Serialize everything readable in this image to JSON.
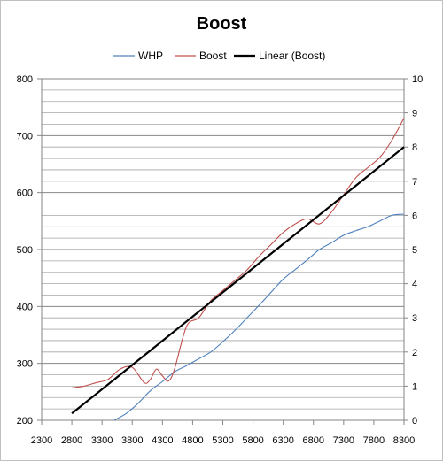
{
  "chart_data": {
    "type": "line",
    "title": "Boost",
    "legend_position": "top",
    "grid": true,
    "x": {
      "min": 2300,
      "max": 8300,
      "ticks": [
        2300,
        2800,
        3300,
        3800,
        4300,
        4800,
        5300,
        5800,
        6300,
        6800,
        7300,
        7800,
        8300
      ],
      "tick_labels": [
        "2300",
        "2800",
        "3300",
        "3800",
        "4300",
        "4800",
        "5300",
        "5800",
        "6300",
        "6800",
        "7300",
        "7800",
        "8300"
      ]
    },
    "y_left": {
      "min": 200,
      "max": 800,
      "ticks": [
        200,
        300,
        400,
        500,
        600,
        700,
        800
      ],
      "tick_labels": [
        "200",
        "300",
        "400",
        "500",
        "600",
        "700",
        "800"
      ]
    },
    "y_right": {
      "min": 0,
      "max": 10,
      "ticks": [
        0,
        1,
        2,
        3,
        4,
        5,
        6,
        7,
        8,
        9,
        10
      ],
      "tick_labels": [
        "0",
        "1",
        "2",
        "3",
        "4",
        "5",
        "6",
        "7",
        "8",
        "9",
        "10"
      ]
    },
    "series": [
      {
        "name": "WHP",
        "axis": "left",
        "color": "#4F81BD",
        "x": [
          3500,
          3700,
          3900,
          4100,
          4300,
          4500,
          4700,
          4900,
          5100,
          5300,
          5500,
          5700,
          5900,
          6100,
          6300,
          6500,
          6700,
          6900,
          7100,
          7300,
          7500,
          7700,
          7900,
          8100,
          8300
        ],
        "y": [
          200,
          212,
          230,
          252,
          268,
          285,
          296,
          308,
          320,
          338,
          358,
          380,
          402,
          425,
          448,
          465,
          482,
          500,
          512,
          525,
          533,
          540,
          550,
          560,
          562
        ]
      },
      {
        "name": "Boost",
        "axis": "right",
        "color": "#C0504D",
        "x": [
          2800,
          3000,
          3200,
          3400,
          3600,
          3800,
          4000,
          4100,
          4200,
          4300,
          4400,
          4500,
          4700,
          4900,
          5100,
          5300,
          5500,
          5700,
          5900,
          6100,
          6300,
          6500,
          6700,
          6900,
          7100,
          7300,
          7500,
          7700,
          7900,
          8100,
          8300
        ],
        "y": [
          0.95,
          1.0,
          1.1,
          1.2,
          1.5,
          1.55,
          1.1,
          1.2,
          1.5,
          1.3,
          1.15,
          1.5,
          2.75,
          3.0,
          3.5,
          3.8,
          4.1,
          4.4,
          4.8,
          5.15,
          5.5,
          5.75,
          5.9,
          5.75,
          6.1,
          6.6,
          7.1,
          7.4,
          7.7,
          8.2,
          8.85
        ]
      },
      {
        "name": "Linear (Boost)",
        "axis": "right",
        "color": "#000000",
        "x": [
          2800,
          8300
        ],
        "y": [
          0.2,
          8.0
        ]
      }
    ]
  }
}
